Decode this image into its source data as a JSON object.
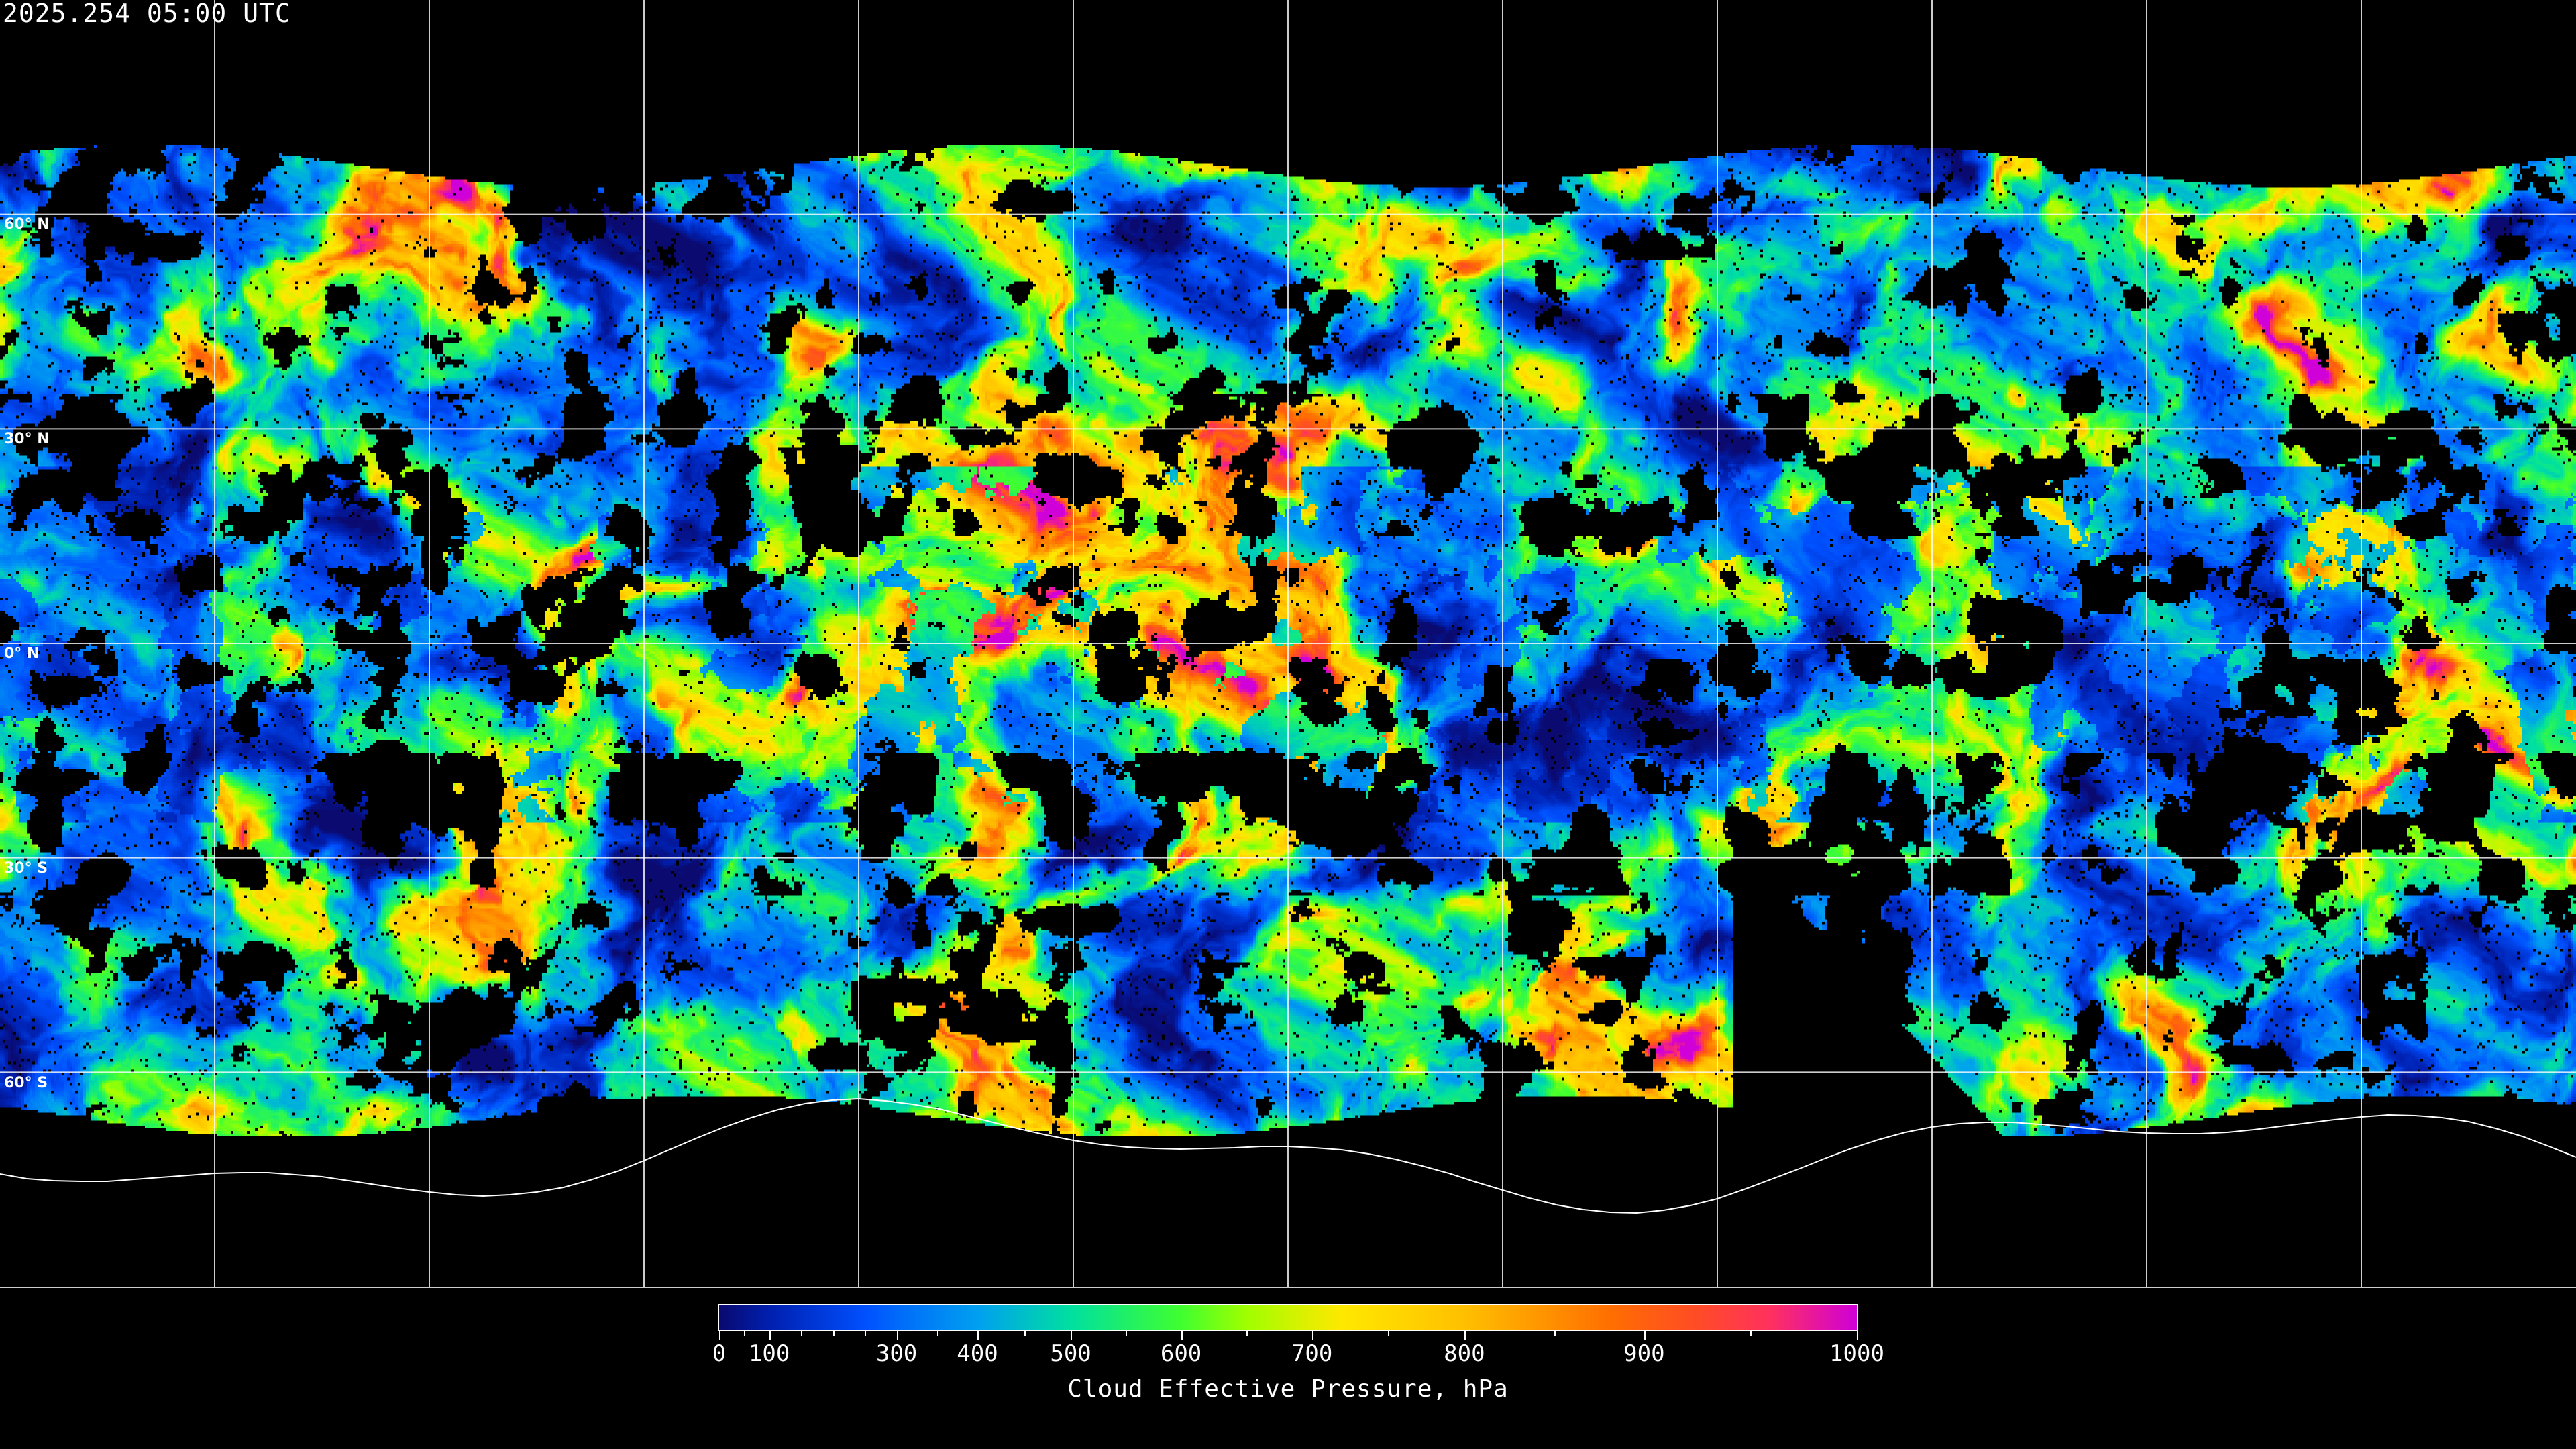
{
  "header": {
    "timestamp": "2025.254 05:00 UTC"
  },
  "map": {
    "projection": "equirectangular",
    "graticule_spacing_deg": 30,
    "lat_labels": [
      "60° N",
      "30° N",
      "0° N",
      "30° S",
      "60° S"
    ],
    "graticule_color": "#ffffff",
    "coastline_color": "#ffffff",
    "no_data_color": "#000000"
  },
  "colorbar": {
    "label": "Cloud Effective Pressure, hPa",
    "min": 0,
    "max": 1000,
    "tick_labels": [
      "0",
      "100",
      "300",
      "400",
      "500",
      "600",
      "700",
      "800",
      "900",
      "1000"
    ],
    "colors": [
      "#0a0a70",
      "#0020b0",
      "#0050ff",
      "#00a0f0",
      "#00e0a0",
      "#40ff30",
      "#a0ff00",
      "#ffe800",
      "#ffc000",
      "#ff7000",
      "#ff5020",
      "#ff3060",
      "#d000d8"
    ]
  }
}
